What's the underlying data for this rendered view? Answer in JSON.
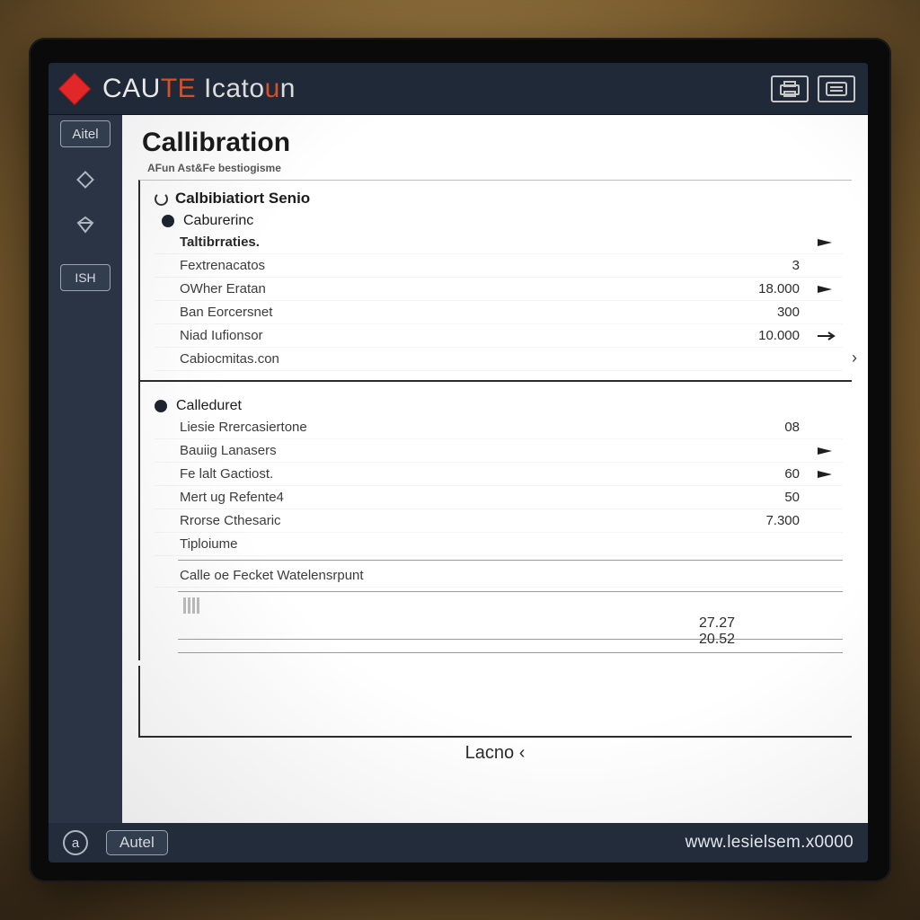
{
  "header": {
    "app_title_main": "CAU",
    "app_title_accent": "TE",
    "app_title_suffix": " Icato",
    "app_title_suffix_accent": "u",
    "app_title_end": "n"
  },
  "sidebar": {
    "brand": "Aitel",
    "btn1": "ISH"
  },
  "page": {
    "title": "Callibration",
    "subtitle": "AFun Ast&Fe bestiogisme",
    "section1_header": "Calbibiatiort Senio",
    "subheader1": "Caburerinc",
    "rows1": [
      {
        "label": "Taltibrraties.",
        "value": "",
        "indicator": "caret"
      },
      {
        "label": "Fextrenacatos",
        "value": "3",
        "indicator": ""
      },
      {
        "label": "OWher Eratan",
        "value": "18.000",
        "indicator": "caret"
      },
      {
        "label": "Ban Eorcersnet",
        "value": "300",
        "indicator": ""
      },
      {
        "label": "Niad Iufionsor",
        "value": "10.000",
        "indicator": "tick"
      },
      {
        "label": "Cabiocmitas.con",
        "value": "",
        "indicator": ""
      }
    ],
    "subheader2": "Calleduret",
    "rows2": [
      {
        "label": "Liesie Rrercasiertone",
        "value": "08",
        "indicator": ""
      },
      {
        "label": "Bauiig Lanasers",
        "value": "",
        "indicator": "caret"
      },
      {
        "label": "Fe lalt Gactiost.",
        "value": "60",
        "indicator": "caret"
      },
      {
        "label": "Mert ug Refente4",
        "value": "50",
        "indicator": ""
      },
      {
        "label": "Rrorse Cthesaric",
        "value": "7.300",
        "indicator": ""
      },
      {
        "label": "Tiploiume",
        "value": "",
        "indicator": ""
      }
    ],
    "footer_label": "Calle oe Fecket Watelensrpunt",
    "stack_vals": [
      "27.27",
      "20.52"
    ],
    "bottom_label": "Lacno ‹"
  },
  "bottombar": {
    "brand": "Autel",
    "url": "www.lesielsem.x0000"
  },
  "colors": {
    "frame": "#0a0a0a",
    "header_bg": "#1f2937",
    "sidebar_bg": "#2a3444",
    "accent_red": "#e12727",
    "panel_bg": "#ffffff",
    "text_dark": "#1a1a1a"
  }
}
